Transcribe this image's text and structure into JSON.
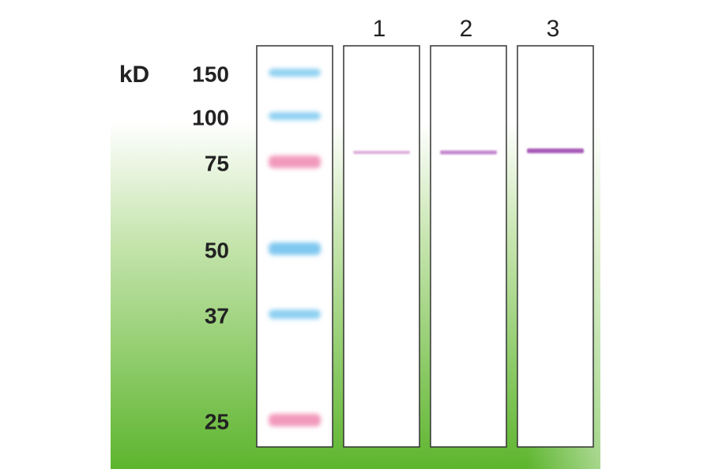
{
  "unit": "kD",
  "markers": [
    150,
    100,
    75,
    50,
    37,
    25
  ],
  "lanes": [
    "1",
    "2",
    "3"
  ]
}
